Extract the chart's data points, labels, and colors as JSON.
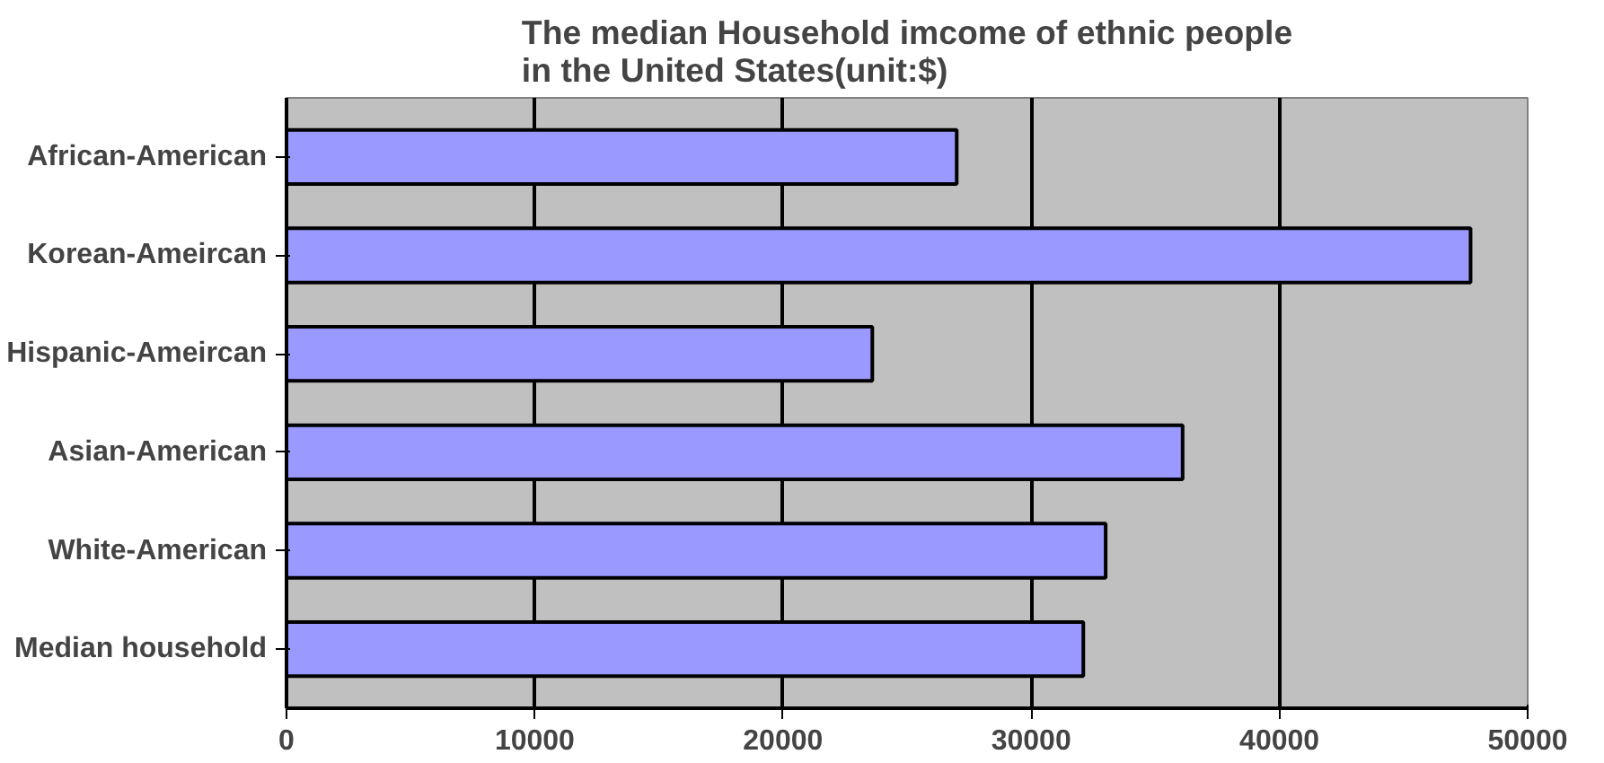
{
  "chart_data": {
    "type": "bar",
    "orientation": "horizontal",
    "title": "The median Household imcome of ethnic people\nin the United States(unit:$)",
    "categories": [
      "African-American",
      "Korean-Ameircan",
      "Hispanic-Ameircan",
      "Asian-American",
      "White-American",
      "Median household"
    ],
    "values": [
      27000,
      47700,
      23600,
      36100,
      33000,
      32100
    ],
    "color": "#9999ff",
    "xlim": [
      0,
      50000
    ],
    "xticks": [
      0,
      10000,
      20000,
      30000,
      40000,
      50000
    ],
    "grid": "x"
  }
}
